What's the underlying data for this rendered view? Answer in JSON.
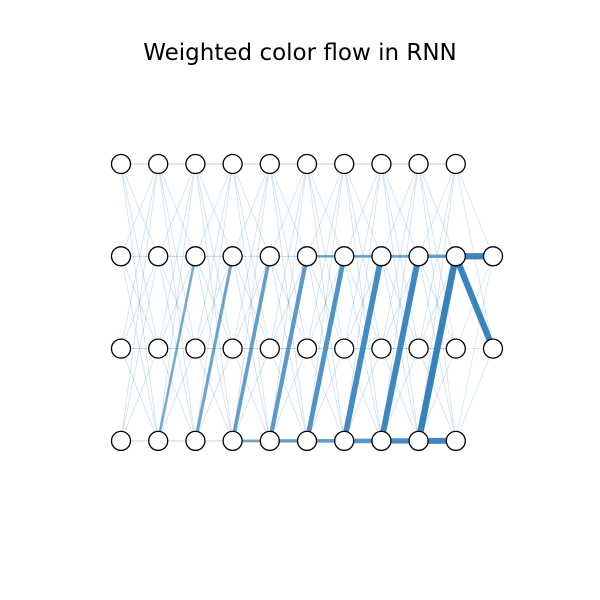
{
  "title": "Weighted color flow in RNN",
  "colors": {
    "edge": "#2b7bb9",
    "node_fill": "#ffffff",
    "node_stroke": "#000000"
  },
  "grid": {
    "columns": 10,
    "layers": 4,
    "extra_output_nodes": [
      {
        "column": 10,
        "layer": 1
      },
      {
        "column": 10,
        "layer": 2
      }
    ]
  },
  "strong_edges": [
    {
      "from": [
        3,
        3
      ],
      "to": [
        4,
        3
      ],
      "weight": 0.35
    },
    {
      "from": [
        4,
        3
      ],
      "to": [
        5,
        3
      ],
      "weight": 0.45
    },
    {
      "from": [
        5,
        3
      ],
      "to": [
        6,
        3
      ],
      "weight": 0.5
    },
    {
      "from": [
        6,
        3
      ],
      "to": [
        7,
        3
      ],
      "weight": 0.65
    },
    {
      "from": [
        7,
        3
      ],
      "to": [
        8,
        3
      ],
      "weight": 0.8
    },
    {
      "from": [
        8,
        3
      ],
      "to": [
        9,
        3
      ],
      "weight": 0.9
    },
    {
      "from": [
        1,
        3
      ],
      "to": [
        2,
        1
      ],
      "weight": 0.3
    },
    {
      "from": [
        2,
        3
      ],
      "to": [
        3,
        1
      ],
      "weight": 0.4
    },
    {
      "from": [
        3,
        3
      ],
      "to": [
        4,
        1
      ],
      "weight": 0.5
    },
    {
      "from": [
        4,
        3
      ],
      "to": [
        5,
        1
      ],
      "weight": 0.6
    },
    {
      "from": [
        5,
        3
      ],
      "to": [
        6,
        1
      ],
      "weight": 0.7
    },
    {
      "from": [
        6,
        3
      ],
      "to": [
        7,
        1
      ],
      "weight": 0.85
    },
    {
      "from": [
        7,
        3
      ],
      "to": [
        8,
        1
      ],
      "weight": 0.9
    },
    {
      "from": [
        8,
        3
      ],
      "to": [
        9,
        1
      ],
      "weight": 1.0
    },
    {
      "from": [
        9,
        1
      ],
      "to": [
        10,
        1
      ],
      "weight": 0.95
    },
    {
      "from": [
        9,
        1
      ],
      "to": [
        10,
        2
      ],
      "weight": 0.95
    },
    {
      "from": [
        5,
        1
      ],
      "to": [
        6,
        1
      ],
      "weight": 0.3
    },
    {
      "from": [
        6,
        1
      ],
      "to": [
        7,
        1
      ],
      "weight": 0.35
    },
    {
      "from": [
        7,
        1
      ],
      "to": [
        8,
        1
      ],
      "weight": 0.35
    },
    {
      "from": [
        8,
        1
      ],
      "to": [
        9,
        1
      ],
      "weight": 0.45
    }
  ]
}
